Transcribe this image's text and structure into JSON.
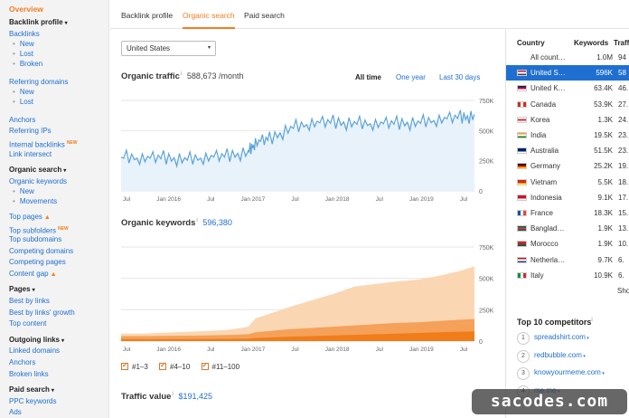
{
  "sidebar": {
    "overview": "Overview",
    "items": [
      {
        "type": "head",
        "label": "Backlink profile",
        "caret": "▾"
      },
      {
        "type": "link",
        "label": "Backlinks"
      },
      {
        "type": "sub",
        "label": "New"
      },
      {
        "type": "sub",
        "label": "Lost"
      },
      {
        "type": "sub",
        "label": "Broken"
      },
      {
        "type": "gap"
      },
      {
        "type": "link",
        "label": "Referring domains"
      },
      {
        "type": "sub",
        "label": "New"
      },
      {
        "type": "sub",
        "label": "Lost"
      },
      {
        "type": "gap"
      },
      {
        "type": "link",
        "label": "Anchors"
      },
      {
        "type": "link",
        "label": "Referring IPs"
      },
      {
        "type": "link",
        "label": "Internal backlinks",
        "badge": "NEW"
      },
      {
        "type": "link",
        "label": "Link intersect"
      },
      {
        "type": "gap-s"
      },
      {
        "type": "head",
        "label": "Organic search",
        "caret": "▾"
      },
      {
        "type": "link",
        "label": "Organic keywords"
      },
      {
        "type": "sub",
        "label": "New"
      },
      {
        "type": "sub",
        "label": "Movements"
      },
      {
        "type": "gap-s"
      },
      {
        "type": "link",
        "label": "Top pages",
        "fire": true
      },
      {
        "type": "link",
        "label": "Top subfolders",
        "badge": "NEW"
      },
      {
        "type": "link",
        "label": "Top subdomains"
      },
      {
        "type": "link",
        "label": "Competing domains"
      },
      {
        "type": "link",
        "label": "Competing pages"
      },
      {
        "type": "link",
        "label": "Content gap",
        "fire": true
      },
      {
        "type": "gap-s"
      },
      {
        "type": "head",
        "label": "Pages",
        "caret": "▾"
      },
      {
        "type": "link",
        "label": "Best by links"
      },
      {
        "type": "link",
        "label": "Best by links' growth"
      },
      {
        "type": "link",
        "label": "Top content"
      },
      {
        "type": "gap-s"
      },
      {
        "type": "head",
        "label": "Outgoing links",
        "caret": "▾"
      },
      {
        "type": "link",
        "label": "Linked domains"
      },
      {
        "type": "link",
        "label": "Anchors"
      },
      {
        "type": "link",
        "label": "Broken links"
      },
      {
        "type": "gap-s"
      },
      {
        "type": "head",
        "label": "Paid search",
        "caret": "▾"
      },
      {
        "type": "link",
        "label": "PPC keywords"
      },
      {
        "type": "link",
        "label": "Ads"
      }
    ]
  },
  "tabs": {
    "backlink_profile": "Backlink profile",
    "organic_search": "Organic search",
    "paid_search": "Paid search"
  },
  "filters": {
    "country": "United States",
    "caret": "▾"
  },
  "organic_traffic": {
    "title": "Organic traffic",
    "info": "i",
    "value": "588,673 /month",
    "ranges": [
      "All time",
      "One year",
      "Last 30 days"
    ]
  },
  "organic_keywords": {
    "title": "Organic keywords",
    "info": "i",
    "value": "596,380",
    "legend": [
      "#1–3",
      "#4–10",
      "#11–100"
    ]
  },
  "traffic_value": {
    "title": "Traffic value",
    "info": "i",
    "value": "$191,425"
  },
  "chart_data": [
    {
      "type": "line",
      "title": "Organic traffic",
      "x_ticks": [
        "Jul",
        "Jan 2016",
        "Jul",
        "Jan 2017",
        "Jul",
        "Jan 2018",
        "Jul",
        "Jan 2019",
        "Jul"
      ],
      "y_ticks": [
        "750K",
        "500K",
        "250K",
        "0"
      ],
      "ylim": [
        0,
        750000
      ],
      "x": [
        "2015-06",
        "2015-09",
        "2015-12",
        "2016-03",
        "2016-06",
        "2016-09",
        "2016-12",
        "2017-01",
        "2017-03",
        "2017-06",
        "2017-09",
        "2017-12",
        "2018-03",
        "2018-06",
        "2018-09",
        "2018-12",
        "2019-03",
        "2019-06",
        "2019-08"
      ],
      "series": [
        {
          "values": [
            280000,
            270000,
            275000,
            260000,
            275000,
            290000,
            320000,
            400000,
            430000,
            520000,
            560000,
            570000,
            560000,
            555000,
            560000,
            565000,
            590000,
            610000,
            620000
          ]
        }
      ],
      "color": "#5ba3db",
      "fill": "#e8f2fb"
    },
    {
      "type": "area",
      "title": "Organic keywords",
      "x_ticks": [
        "Jul",
        "Jan 2016",
        "Jul",
        "Jan 2017",
        "Jul",
        "Jan 2018",
        "Jul",
        "Jan 2019",
        "Jul"
      ],
      "y_ticks": [
        "750K",
        "500K",
        "250K",
        "0"
      ],
      "ylim": [
        0,
        750000
      ],
      "x": [
        "2015-06",
        "2015-09",
        "2015-12",
        "2016-03",
        "2016-06",
        "2016-09",
        "2016-12",
        "2017-01",
        "2017-06",
        "2017-12",
        "2018-03",
        "2018-06",
        "2018-09",
        "2018-12",
        "2019-03",
        "2019-06",
        "2019-08"
      ],
      "series": [
        {
          "name": "#1–3",
          "values": [
            15000,
            15000,
            15000,
            16000,
            17000,
            18000,
            20000,
            25000,
            35000,
            45000,
            50000,
            55000,
            60000,
            65000,
            70000,
            75000,
            78000
          ]
        },
        {
          "name": "#4–10",
          "values": [
            25000,
            25000,
            26000,
            27000,
            28000,
            30000,
            35000,
            45000,
            60000,
            70000,
            75000,
            80000,
            85000,
            85000,
            90000,
            95000,
            98000
          ]
        },
        {
          "name": "#11–100",
          "values": [
            20000,
            20000,
            25000,
            30000,
            35000,
            40000,
            60000,
            110000,
            180000,
            260000,
            310000,
            320000,
            330000,
            340000,
            360000,
            390000,
            420000
          ]
        }
      ],
      "colors": [
        "#f07d1a",
        "#f5a15a",
        "#fbd6b3"
      ]
    }
  ],
  "countries": {
    "headers": {
      "country": "Country",
      "keywords": "Keywords",
      "traffic": "Traffi"
    },
    "rows": [
      {
        "name": "All count…",
        "keywords": "1.0M",
        "traffic": "94",
        "flag": "none",
        "selected": false
      },
      {
        "name": "United S…",
        "keywords": "596K",
        "traffic": "58",
        "flag": "us",
        "selected": true
      },
      {
        "name": "United K…",
        "keywords": "63.4K",
        "traffic": "46.",
        "flag": "uk",
        "selected": false
      },
      {
        "name": "Canada",
        "keywords": "53.9K",
        "traffic": "27.",
        "flag": "ca",
        "selected": false
      },
      {
        "name": "Korea",
        "keywords": "1.3K",
        "traffic": "24.",
        "flag": "kr",
        "selected": false
      },
      {
        "name": "India",
        "keywords": "19.5K",
        "traffic": "23.",
        "flag": "in",
        "selected": false
      },
      {
        "name": "Australia",
        "keywords": "51.5K",
        "traffic": "23.",
        "flag": "au",
        "selected": false
      },
      {
        "name": "Germany",
        "keywords": "25.2K",
        "traffic": "19.",
        "flag": "de",
        "selected": false
      },
      {
        "name": "Vietnam",
        "keywords": "5.5K",
        "traffic": "18.",
        "flag": "vn",
        "selected": false
      },
      {
        "name": "Indonesia",
        "keywords": "9.1K",
        "traffic": "17.",
        "flag": "id",
        "selected": false
      },
      {
        "name": "France",
        "keywords": "18.3K",
        "traffic": "15.",
        "flag": "fr",
        "selected": false
      },
      {
        "name": "Banglad…",
        "keywords": "1.9K",
        "traffic": "13.",
        "flag": "bd",
        "selected": false
      },
      {
        "name": "Morocco",
        "keywords": "1.9K",
        "traffic": "10.",
        "flag": "ma",
        "selected": false
      },
      {
        "name": "Netherla…",
        "keywords": "9.7K",
        "traffic": "6.",
        "flag": "nl",
        "selected": false
      },
      {
        "name": "Italy",
        "keywords": "10.9K",
        "traffic": "6.",
        "flag": "it",
        "selected": false
      }
    ],
    "show_more": "Sho"
  },
  "competitors": {
    "title": "Top 10 competitors",
    "info": "i",
    "items": [
      {
        "rank": "1",
        "name": "spreadshirt.com"
      },
      {
        "rank": "2",
        "name": "redbubble.com"
      },
      {
        "rank": "3",
        "name": "knowyourmeme.com"
      },
      {
        "rank": "4",
        "name": "me.me"
      }
    ]
  },
  "watermark": "sacodes.com"
}
